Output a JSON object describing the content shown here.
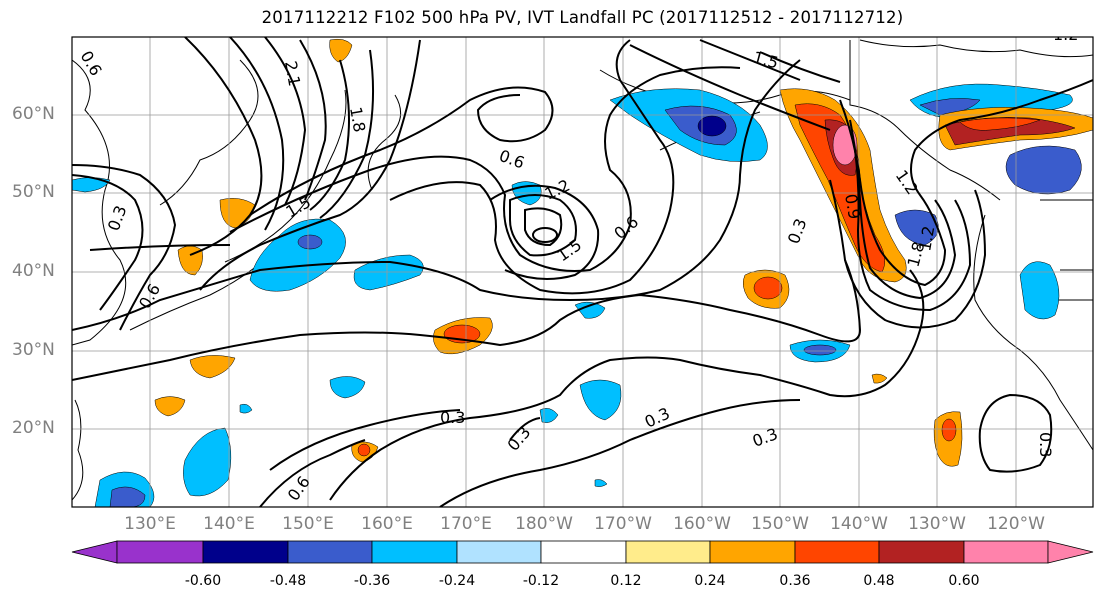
{
  "title": "2017112212 F102 500 hPa PV, IVT Landfall PC (2017112512 - 2017112712)",
  "lat_labels": [
    "60°N",
    "50°N",
    "40°N",
    "30°N",
    "20°N"
  ],
  "lon_labels": [
    "130°E",
    "140°E",
    "150°E",
    "160°E",
    "170°E",
    "180°W",
    "170°W",
    "160°W",
    "150°W",
    "140°W",
    "130°W",
    "120°W"
  ],
  "contour_labels": [
    "2.1",
    "1.8",
    "1.5",
    "1.2",
    "0.6",
    "0.3",
    "0.6",
    "1.5",
    "0.6",
    "1.2",
    "0.9",
    "0.3",
    "1.8",
    "1.2",
    "1.5",
    "0.3",
    "0.3",
    "0.3",
    "0.3",
    "0.6",
    "0.3",
    "1.2",
    "0.6"
  ],
  "colorbar": {
    "tick_labels": [
      "-0.60",
      "-0.48",
      "-0.36",
      "-0.24",
      "-0.12",
      "0.12",
      "0.24",
      "0.36",
      "0.48",
      "0.60"
    ],
    "colors": [
      "#9932cc",
      "#00008b",
      "#3a5ccc",
      "#00bfff",
      "#b0e2ff",
      "#ffffff",
      "#ffec8b",
      "#ffa500",
      "#ff4500",
      "#b22222",
      "#ff82ab"
    ]
  }
}
